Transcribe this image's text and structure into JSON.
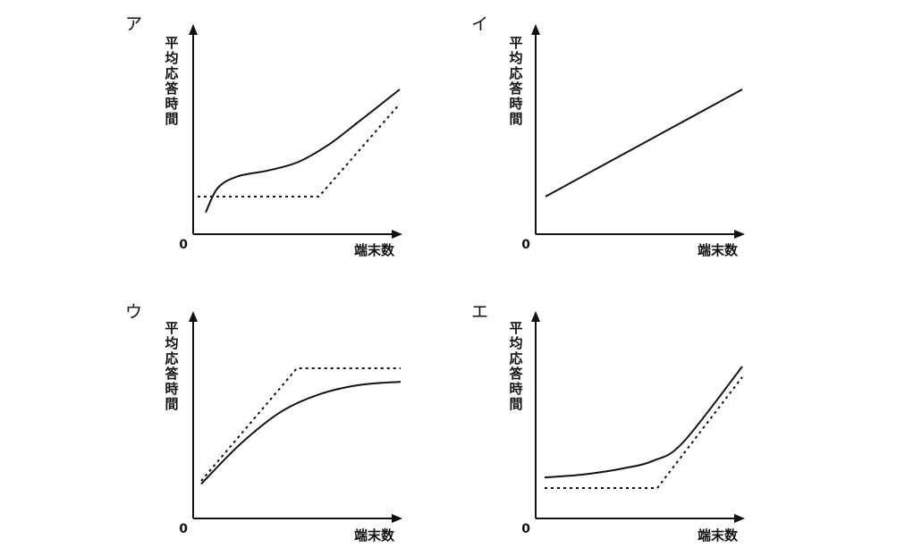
{
  "chart_data": [
    {
      "type": "line",
      "panel_label": "ア",
      "ylabel": "平均応答時間",
      "xlabel": "端末数",
      "origin_label": "0",
      "xlim": [
        0,
        1
      ],
      "ylim": [
        0,
        1
      ],
      "series": [
        {
          "style": "solid",
          "x": [
            0.04,
            0.1,
            0.2,
            0.35,
            0.5,
            0.65,
            0.8,
            1.0
          ],
          "y": [
            0.15,
            0.32,
            0.4,
            0.44,
            0.5,
            0.62,
            0.78,
            1.0
          ]
        },
        {
          "style": "dotted",
          "x": [
            0.0,
            0.6,
            1.0
          ],
          "y": [
            0.26,
            0.26,
            0.9
          ]
        }
      ]
    },
    {
      "type": "line",
      "panel_label": "イ",
      "ylabel": "平均応答時間",
      "xlabel": "端末数",
      "origin_label": "0",
      "xlim": [
        0,
        1
      ],
      "ylim": [
        0,
        1
      ],
      "series": [
        {
          "style": "solid",
          "x": [
            0.0,
            1.0
          ],
          "y": [
            0.26,
            1.0
          ]
        }
      ]
    },
    {
      "type": "line",
      "panel_label": "ウ",
      "ylabel": "平均応答時間",
      "xlabel": "端末数",
      "origin_label": "0",
      "xlim": [
        0,
        1
      ],
      "ylim": [
        0,
        1
      ],
      "series": [
        {
          "style": "solid",
          "x": [
            0.0,
            0.2,
            0.4,
            0.6,
            0.8,
            1.0
          ],
          "y": [
            0.23,
            0.5,
            0.71,
            0.83,
            0.89,
            0.91
          ]
        },
        {
          "style": "dotted",
          "x": [
            0.0,
            0.48,
            1.0
          ],
          "y": [
            0.25,
            1.0,
            1.0
          ]
        }
      ]
    },
    {
      "type": "line",
      "panel_label": "エ",
      "ylabel": "平均応答時間",
      "xlabel": "端末数",
      "origin_label": "0",
      "xlim": [
        0,
        1
      ],
      "ylim": [
        0,
        1
      ],
      "series": [
        {
          "style": "solid",
          "x": [
            0.0,
            0.2,
            0.4,
            0.55,
            0.7,
            1.0
          ],
          "y": [
            0.27,
            0.29,
            0.33,
            0.38,
            0.5,
            1.0
          ]
        },
        {
          "style": "dotted",
          "x": [
            0.0,
            0.57,
            1.0
          ],
          "y": [
            0.2,
            0.2,
            0.93
          ]
        }
      ]
    }
  ]
}
